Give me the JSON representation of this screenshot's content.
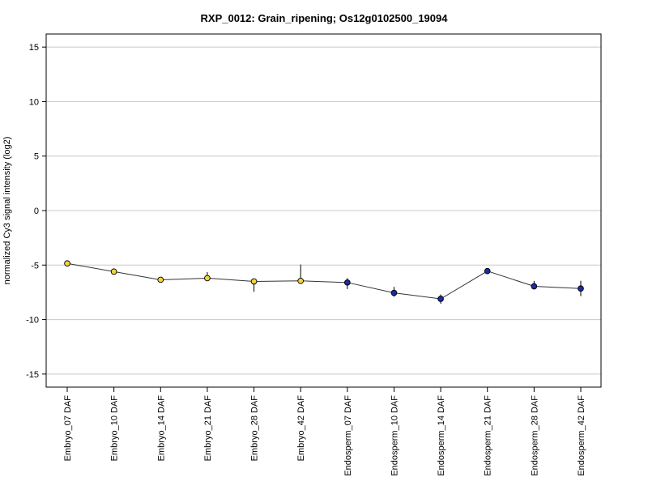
{
  "chart_data": {
    "type": "line",
    "title": "RXP_0012: Grain_ripening; Os12g0102500_19094",
    "xlabel": "",
    "ylabel": "normalized Cy3 signal intensity (log2)",
    "ylim": [
      -16.2,
      16.2
    ],
    "yticks": [
      -15,
      -10,
      -5,
      0,
      5,
      10,
      15
    ],
    "grid": true,
    "categories": [
      "Embryo_07 DAF",
      "Embryo_10 DAF",
      "Embryo_14 DAF",
      "Embryo_21 DAF",
      "Embryo_28 DAF",
      "Embryo_42 DAF",
      "Endosperm_07 DAF",
      "Endosperm_10 DAF",
      "Endosperm_14 DAF",
      "Endosperm_21 DAF",
      "Endosperm_28 DAF",
      "Endosperm_42 DAF"
    ],
    "series": [
      {
        "values": [
          -4.85,
          -5.6,
          -6.35,
          -6.2,
          -6.5,
          -6.45,
          -6.6,
          -7.55,
          -8.1,
          -5.55,
          -6.95,
          -7.15
        ],
        "error_low": [
          -4.95,
          -5.7,
          -6.6,
          -6.4,
          -7.45,
          -6.55,
          -7.2,
          -7.9,
          -8.55,
          -5.65,
          -7.1,
          -7.85
        ],
        "error_high": [
          -4.75,
          -5.3,
          -6.1,
          -5.65,
          -6.4,
          -4.95,
          -6.2,
          -7.0,
          -7.7,
          -5.45,
          -6.45,
          -6.45
        ],
        "point_colors": [
          "#f5d33a",
          "#f5d33a",
          "#f5d33a",
          "#f5d33a",
          "#f5d33a",
          "#f5d33a",
          "#1a2ca0",
          "#1a2ca0",
          "#1a2ca0",
          "#1a2ca0",
          "#1a2ca0",
          "#1a2ca0"
        ]
      }
    ],
    "colors": {
      "line": "#333333",
      "grid": "#c8c8c8",
      "axis": "#000000",
      "point_outline": "#000000"
    }
  }
}
